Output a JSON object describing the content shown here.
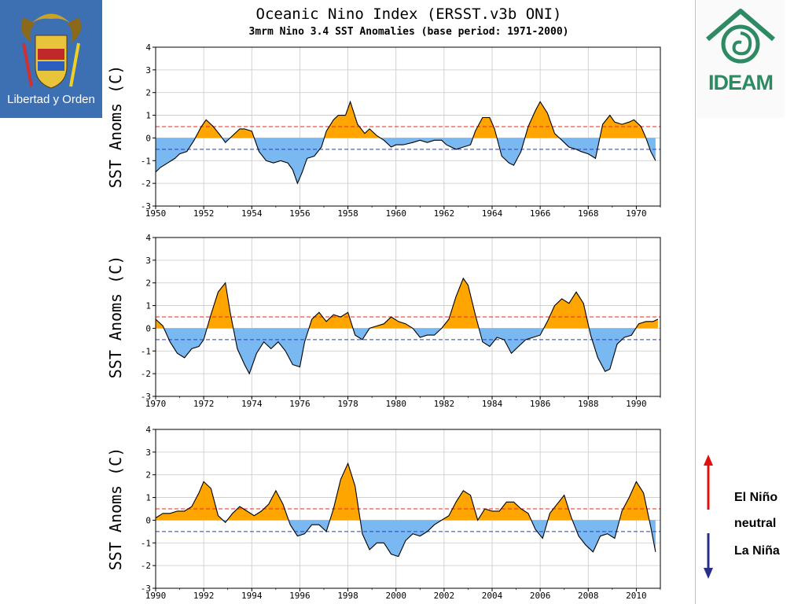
{
  "header": {
    "title": "Oceanic Nino Index (ERSST.v3b ONI)",
    "subtitle": "3mrm Nino 3.4 SST Anomalies (base period: 1971-2000)"
  },
  "logos": {
    "left_text": "Libertad y Orden",
    "right_text": "IDEAM"
  },
  "legend": {
    "el_nino": "El Niño",
    "neutral": "neutral",
    "la_nina": "La Niña"
  },
  "colors": {
    "warm_fill": "#ffa500",
    "cold_fill": "#79b8f0",
    "el_nino_threshold": "#e8281e",
    "la_nina_threshold": "#2a3fc4",
    "el_nino_arrow": "#e01010",
    "la_nina_arrow": "#2a2f8a",
    "left_logo_bg": "#3d6fb3",
    "right_logo_text": "#2d8a63"
  },
  "chart_data": [
    {
      "type": "area",
      "ylabel": "SST Anoms (C)",
      "xlim": [
        1950,
        1971
      ],
      "ylim": [
        -3,
        4
      ],
      "yticks": [
        4,
        3,
        2,
        1,
        0,
        -1,
        -2,
        -3
      ],
      "xticks": [
        1950,
        1952,
        1954,
        1956,
        1958,
        1960,
        1962,
        1964,
        1966,
        1968,
        1970
      ],
      "thresholds": [
        0.5,
        -0.5
      ],
      "grid": true,
      "x": [
        1950.0,
        1950.2,
        1950.5,
        1950.8,
        1951.0,
        1951.3,
        1951.6,
        1951.9,
        1952.1,
        1952.4,
        1952.7,
        1952.9,
        1953.2,
        1953.5,
        1953.7,
        1954.0,
        1954.3,
        1954.6,
        1954.9,
        1955.2,
        1955.5,
        1955.7,
        1955.9,
        1956.1,
        1956.3,
        1956.6,
        1956.9,
        1957.1,
        1957.4,
        1957.6,
        1957.9,
        1958.1,
        1958.4,
        1958.7,
        1958.9,
        1959.2,
        1959.5,
        1959.8,
        1960.0,
        1960.3,
        1960.7,
        1961.0,
        1961.3,
        1961.6,
        1961.9,
        1962.1,
        1962.5,
        1962.8,
        1963.1,
        1963.3,
        1963.6,
        1963.9,
        1964.1,
        1964.4,
        1964.7,
        1964.9,
        1965.2,
        1965.5,
        1965.8,
        1966.0,
        1966.3,
        1966.6,
        1966.9,
        1967.2,
        1967.5,
        1967.7,
        1968.0,
        1968.3,
        1968.6,
        1968.9,
        1969.1,
        1969.4,
        1969.7,
        1969.9,
        1970.2,
        1970.4,
        1970.6,
        1970.8
      ],
      "y": [
        -1.5,
        -1.3,
        -1.1,
        -0.9,
        -0.7,
        -0.6,
        -0.1,
        0.5,
        0.8,
        0.5,
        0.1,
        -0.2,
        0.1,
        0.4,
        0.4,
        0.3,
        -0.6,
        -1.0,
        -1.1,
        -1.0,
        -1.1,
        -1.4,
        -2.0,
        -1.5,
        -0.9,
        -0.8,
        -0.4,
        0.3,
        0.8,
        1.0,
        1.0,
        1.6,
        0.6,
        0.2,
        0.4,
        0.1,
        -0.1,
        -0.4,
        -0.3,
        -0.3,
        -0.2,
        -0.1,
        -0.2,
        -0.1,
        -0.1,
        -0.3,
        -0.5,
        -0.4,
        -0.3,
        0.3,
        0.9,
        0.9,
        0.4,
        -0.8,
        -1.1,
        -1.2,
        -0.6,
        0.5,
        1.2,
        1.6,
        1.1,
        0.2,
        -0.1,
        -0.4,
        -0.5,
        -0.6,
        -0.7,
        -0.9,
        0.6,
        1.0,
        0.7,
        0.6,
        0.7,
        0.8,
        0.5,
        0.0,
        -0.6,
        -1.0
      ]
    },
    {
      "type": "area",
      "ylabel": "SST Anoms (C)",
      "xlim": [
        1970,
        1991
      ],
      "ylim": [
        -3,
        4
      ],
      "yticks": [
        4,
        3,
        2,
        1,
        0,
        -1,
        -2,
        -3
      ],
      "xticks": [
        1970,
        1972,
        1974,
        1976,
        1978,
        1980,
        1982,
        1984,
        1986,
        1988,
        1990
      ],
      "thresholds": [
        0.5,
        -0.5
      ],
      "grid": true,
      "x": [
        1970.0,
        1970.3,
        1970.6,
        1970.9,
        1971.2,
        1971.5,
        1971.8,
        1972.0,
        1972.3,
        1972.6,
        1972.9,
        1973.1,
        1973.4,
        1973.7,
        1973.9,
        1974.2,
        1974.5,
        1974.8,
        1975.1,
        1975.4,
        1975.7,
        1976.0,
        1976.2,
        1976.5,
        1976.8,
        1977.1,
        1977.4,
        1977.7,
        1978.0,
        1978.3,
        1978.6,
        1978.9,
        1979.2,
        1979.5,
        1979.8,
        1980.1,
        1980.4,
        1980.7,
        1981.0,
        1981.3,
        1981.6,
        1981.9,
        1982.2,
        1982.5,
        1982.8,
        1983.0,
        1983.3,
        1983.6,
        1983.9,
        1984.2,
        1984.5,
        1984.8,
        1985.1,
        1985.4,
        1985.7,
        1986.0,
        1986.3,
        1986.6,
        1986.9,
        1987.2,
        1987.5,
        1987.8,
        1988.1,
        1988.4,
        1988.7,
        1988.9,
        1989.2,
        1989.5,
        1989.8,
        1990.1,
        1990.4,
        1990.7,
        1990.9
      ],
      "y": [
        0.4,
        0.1,
        -0.6,
        -1.1,
        -1.3,
        -0.9,
        -0.8,
        -0.5,
        0.6,
        1.6,
        2.0,
        0.7,
        -0.9,
        -1.6,
        -2.0,
        -1.1,
        -0.6,
        -0.9,
        -0.6,
        -1.0,
        -1.6,
        -1.7,
        -0.6,
        0.4,
        0.7,
        0.3,
        0.6,
        0.5,
        0.7,
        -0.3,
        -0.5,
        0.0,
        0.1,
        0.2,
        0.5,
        0.3,
        0.2,
        0.0,
        -0.4,
        -0.3,
        -0.3,
        0.0,
        0.4,
        1.4,
        2.2,
        1.9,
        0.6,
        -0.6,
        -0.8,
        -0.4,
        -0.5,
        -1.1,
        -0.8,
        -0.5,
        -0.4,
        -0.3,
        0.3,
        1.0,
        1.3,
        1.1,
        1.6,
        1.1,
        -0.3,
        -1.3,
        -1.9,
        -1.8,
        -0.7,
        -0.4,
        -0.3,
        0.2,
        0.3,
        0.3,
        0.4
      ]
    },
    {
      "type": "area",
      "ylabel": "SST Anoms (C)",
      "xlim": [
        1990,
        2011
      ],
      "ylim": [
        -3,
        4
      ],
      "yticks": [
        4,
        3,
        2,
        1,
        0,
        -1,
        -2,
        -3
      ],
      "xticks": [
        1990,
        1992,
        1994,
        1996,
        1998,
        2000,
        2002,
        2004,
        2006,
        2008,
        2010
      ],
      "thresholds": [
        0.5,
        -0.5
      ],
      "grid": true,
      "x": [
        1990.0,
        1990.3,
        1990.6,
        1990.9,
        1991.2,
        1991.5,
        1991.8,
        1992.0,
        1992.3,
        1992.6,
        1992.9,
        1993.2,
        1993.5,
        1993.8,
        1994.1,
        1994.4,
        1994.7,
        1995.0,
        1995.3,
        1995.6,
        1995.9,
        1996.2,
        1996.5,
        1996.8,
        1997.1,
        1997.4,
        1997.7,
        1998.0,
        1998.3,
        1998.6,
        1998.9,
        1999.2,
        1999.5,
        1999.8,
        2000.1,
        2000.4,
        2000.7,
        2001.0,
        2001.3,
        2001.6,
        2001.9,
        2002.2,
        2002.5,
        2002.8,
        2003.1,
        2003.4,
        2003.7,
        2004.0,
        2004.3,
        2004.6,
        2004.9,
        2005.2,
        2005.5,
        2005.8,
        2006.1,
        2006.4,
        2006.7,
        2007.0,
        2007.3,
        2007.6,
        2007.9,
        2008.2,
        2008.5,
        2008.8,
        2009.1,
        2009.4,
        2009.7,
        2010.0,
        2010.3,
        2010.6,
        2010.8
      ],
      "y": [
        0.1,
        0.3,
        0.3,
        0.4,
        0.4,
        0.6,
        1.2,
        1.7,
        1.4,
        0.2,
        -0.1,
        0.3,
        0.6,
        0.4,
        0.2,
        0.4,
        0.7,
        1.3,
        0.7,
        -0.2,
        -0.7,
        -0.6,
        -0.2,
        -0.2,
        -0.5,
        0.5,
        1.8,
        2.5,
        1.5,
        -0.6,
        -1.3,
        -1.0,
        -1.0,
        -1.5,
        -1.6,
        -0.9,
        -0.6,
        -0.7,
        -0.5,
        -0.2,
        0.0,
        0.2,
        0.8,
        1.3,
        1.1,
        0.0,
        0.5,
        0.4,
        0.4,
        0.8,
        0.8,
        0.5,
        0.3,
        -0.4,
        -0.8,
        0.3,
        0.7,
        1.1,
        0.1,
        -0.7,
        -1.1,
        -1.4,
        -0.7,
        -0.6,
        -0.8,
        0.4,
        1.0,
        1.7,
        1.2,
        -0.3,
        -1.4
      ]
    }
  ]
}
